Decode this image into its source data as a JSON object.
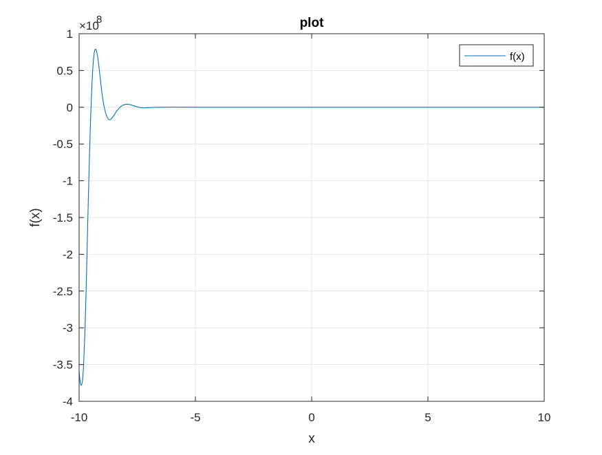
{
  "chart_data": {
    "type": "line",
    "title": "plot",
    "xlabel": "x",
    "ylabel": "f(x)",
    "xlim": [
      -10,
      10
    ],
    "ylim": [
      -4,
      1
    ],
    "y_multiplier_base": "×10",
    "y_multiplier_exp": "8",
    "x_ticks": [
      -10,
      -5,
      0,
      5,
      10
    ],
    "x_tick_labels": [
      "-10",
      "-5",
      "0",
      "5",
      "10"
    ],
    "y_ticks": [
      1,
      0.5,
      0,
      -0.5,
      -1,
      -1.5,
      -2,
      -2.5,
      -3,
      -3.5,
      -4
    ],
    "y_tick_labels": [
      "1",
      "0.5",
      "0",
      "-0.5",
      "-1",
      "-1.5",
      "-2",
      "-2.5",
      "-3",
      "-3.5",
      "-4"
    ],
    "grid": true,
    "legend_position": "top-right",
    "series": [
      {
        "name": "f(x)",
        "color": "#0072BD",
        "x": [
          -10.0,
          -9.95,
          -9.9,
          -9.85,
          -9.8,
          -9.75,
          -9.7,
          -9.65,
          -9.6,
          -9.55,
          -9.5,
          -9.45,
          -9.4,
          -9.35,
          -9.3,
          -9.25,
          -9.2,
          -9.15,
          -9.1,
          -9.05,
          -9.0,
          -8.9,
          -8.8,
          -8.7,
          -8.6,
          -8.5,
          -8.4,
          -8.3,
          -8.2,
          -8.1,
          -8.0,
          -7.9,
          -7.8,
          -7.7,
          -7.6,
          -7.5,
          -7.4,
          -7.3,
          -7.2,
          -7.1,
          -7.0,
          -6.8,
          -6.5,
          -6.0,
          -5.0,
          0.0,
          5.0,
          10.0
        ],
        "y": [
          -3.6,
          -3.75,
          -3.78,
          -3.7,
          -3.45,
          -3.05,
          -2.5,
          -1.85,
          -1.2,
          -0.6,
          -0.1,
          0.3,
          0.58,
          0.74,
          0.79,
          0.76,
          0.68,
          0.56,
          0.42,
          0.28,
          0.15,
          -0.03,
          -0.13,
          -0.17,
          -0.15,
          -0.11,
          -0.06,
          -0.02,
          0.01,
          0.03,
          0.04,
          0.04,
          0.035,
          0.025,
          0.015,
          0.005,
          -0.003,
          -0.007,
          -0.008,
          -0.007,
          -0.005,
          -0.002,
          0.0,
          0.001,
          0.0,
          0.0,
          0.0,
          0.0
        ]
      }
    ]
  }
}
